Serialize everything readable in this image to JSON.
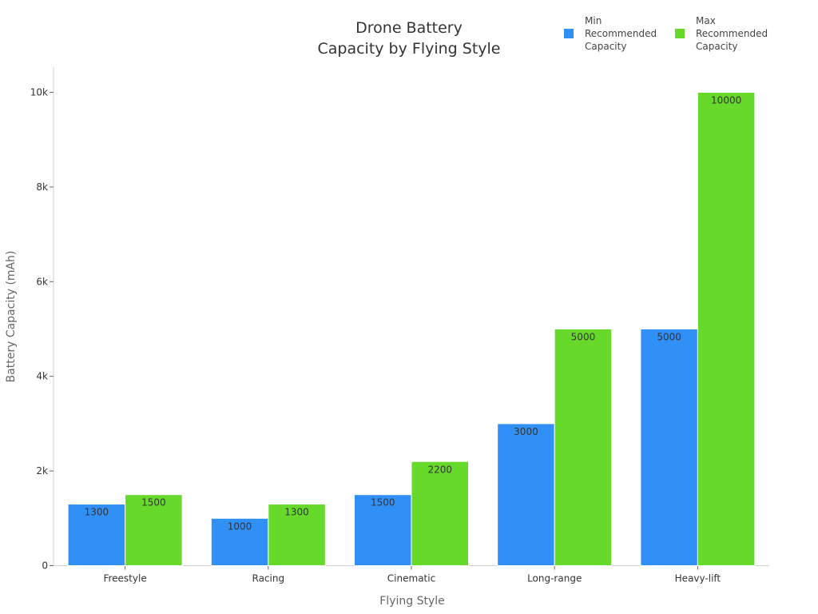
{
  "chart_data": {
    "type": "bar",
    "title": "Drone Battery Capacity by Flying Style",
    "title_lines": [
      "Drone Battery",
      "Capacity by Flying Style"
    ],
    "xlabel": "Flying Style",
    "ylabel": "Battery Capacity (mAh)",
    "categories": [
      "Freestyle",
      "Racing",
      "Cinematic",
      "Long-range",
      "Heavy-lift"
    ],
    "series": [
      {
        "name": "Min Recommended Capacity",
        "legend_lines": [
          "Min",
          "Recommended",
          "Capacity"
        ],
        "color": "#3090f5",
        "values": [
          1300,
          1000,
          1500,
          3000,
          5000
        ]
      },
      {
        "name": "Max Recommended Capacity",
        "legend_lines": [
          "Max",
          "Recommended",
          "Capacity"
        ],
        "color": "#66d92a",
        "values": [
          1500,
          1300,
          2200,
          5000,
          10000
        ]
      }
    ],
    "yticks": [
      0,
      2000,
      4000,
      6000,
      8000,
      10000
    ],
    "ytick_labels": [
      "0",
      "2k",
      "4k",
      "6k",
      "8k",
      "10k"
    ],
    "ylim": [
      0,
      10500
    ],
    "grid": false,
    "legend_position": "top-right",
    "data_labels": true
  }
}
